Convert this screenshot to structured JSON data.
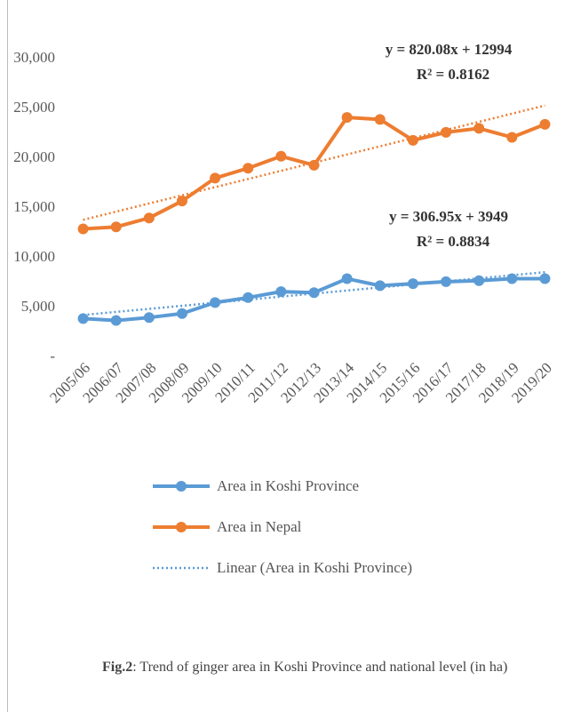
{
  "chart_data": {
    "type": "line",
    "categories": [
      "2005/06",
      "2006/07",
      "2007/08",
      "2008/09",
      "2009/10",
      "2010/11",
      "2011/12",
      "2012/13",
      "2013/14",
      "2014/15",
      "2015/16",
      "2016/17",
      "2017/18",
      "2018/19",
      "2019/20"
    ],
    "series": [
      {
        "name": "Area in Koshi Province",
        "color": "#5b9bd5",
        "values": [
          3900,
          3700,
          4000,
          4400,
          5500,
          6000,
          6600,
          6500,
          7900,
          7200,
          7400,
          7600,
          7700,
          7900,
          7900
        ],
        "trendline": {
          "name": "Linear (Area in Koshi Province)",
          "slope": 306.95,
          "intercept": 3949,
          "equation": "y = 306.95x + 3949",
          "r2": "R² = 0.8834"
        }
      },
      {
        "name": "Area in Nepal",
        "color": "#ed7d31",
        "values": [
          12900,
          13100,
          14000,
          15700,
          18000,
          19000,
          20200,
          19300,
          24100,
          23900,
          21800,
          22600,
          23000,
          22100,
          23400
        ],
        "trendline": {
          "slope": 820.08,
          "intercept": 12994,
          "equation": "y = 820.08x + 12994",
          "r2": "R² = 0.8162"
        }
      }
    ],
    "ylim": [
      0,
      30000
    ],
    "yticks": [
      {
        "value": 0,
        "label": "-"
      },
      {
        "value": 5000,
        "label": "5,000"
      },
      {
        "value": 10000,
        "label": "10,000"
      },
      {
        "value": 15000,
        "label": "15,000"
      },
      {
        "value": 20000,
        "label": "20,000"
      },
      {
        "value": 25000,
        "label": "25,000"
      },
      {
        "value": 30000,
        "label": "30,000"
      }
    ],
    "grid": false
  },
  "caption": {
    "label": "Fig.2",
    "text": ": Trend of ginger area in Koshi Province and national level (in ha)"
  }
}
